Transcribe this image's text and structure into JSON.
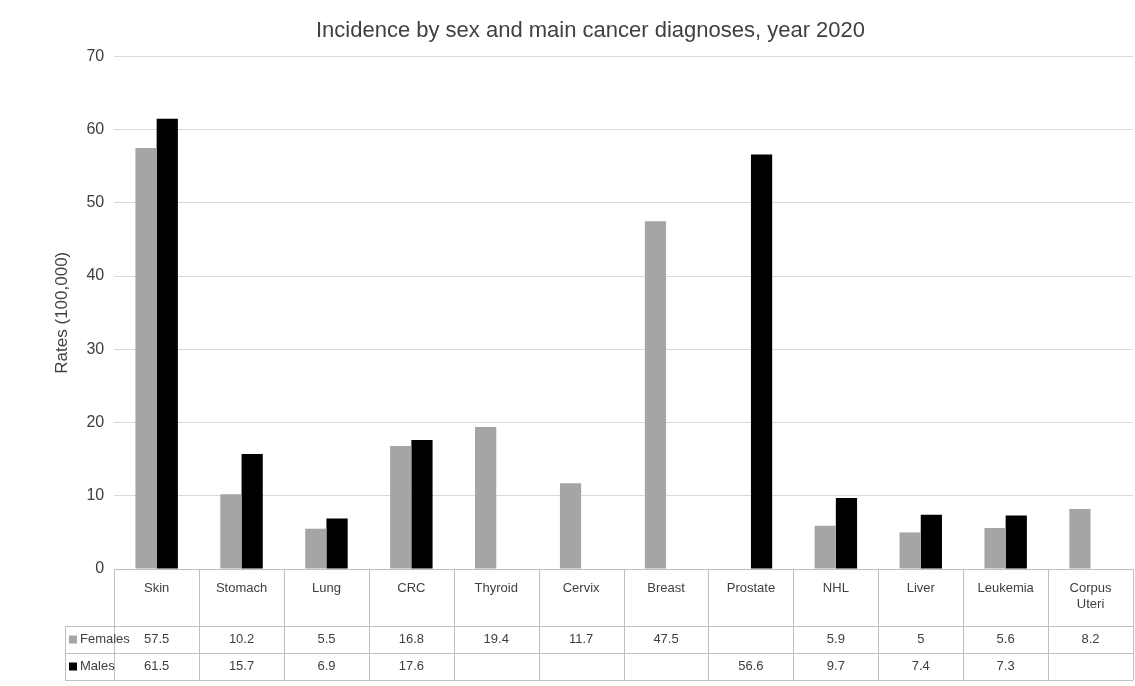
{
  "chart_data": {
    "type": "bar",
    "title": "Incidence by sex and main cancer diagnoses, year 2020",
    "ylabel": "Rates (100,000)",
    "categories": [
      "Skin",
      "Stomach",
      "Lung",
      "CRC",
      "Thyroid",
      "Cervix",
      "Breast",
      "Prostate",
      "NHL",
      "Liver",
      "Leukemia",
      "Corpus Uteri"
    ],
    "series": [
      {
        "name": "Females",
        "color": "#a5a5a5",
        "values": [
          57.5,
          10.2,
          5.5,
          16.8,
          19.4,
          11.7,
          47.5,
          null,
          5.9,
          5,
          5.6,
          8.2
        ]
      },
      {
        "name": "Males",
        "color": "#000000",
        "values": [
          61.5,
          15.7,
          6.9,
          17.6,
          null,
          null,
          null,
          56.6,
          9.7,
          7.4,
          7.3,
          null
        ]
      }
    ],
    "ylim": [
      0,
      70
    ],
    "yticks": [
      0,
      10,
      20,
      30,
      40,
      50,
      60,
      70
    ],
    "grid": "y",
    "legend": "bottom",
    "data_labels": true
  }
}
